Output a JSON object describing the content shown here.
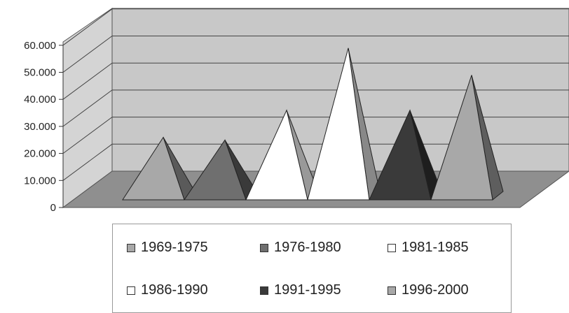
{
  "chart_data": {
    "type": "bar",
    "style": "3d-pyramid",
    "categories": [
      "1969-1975",
      "1976-1980",
      "1981-1985",
      "1986-1990",
      "1991-1995",
      "1996-2000"
    ],
    "values": [
      27000,
      26000,
      37000,
      60000,
      37000,
      50000
    ],
    "yticks": [
      "0",
      "10.000",
      "20.000",
      "30.000",
      "40.000",
      "50.000",
      "60.000"
    ],
    "ylim": [
      0,
      60000
    ],
    "grid": true,
    "legend_position": "bottom",
    "colors": {
      "front": [
        "#a8a8a8",
        "#6f6f6f",
        "#ffffff",
        "#ffffff",
        "#3a3a3a",
        "#a8a8a8"
      ],
      "side": [
        "#5a5a5a",
        "#3a3a3a",
        "#999999",
        "#888888",
        "#1e1e1e",
        "#5e5e5e"
      ],
      "wall": "#c8c8c8",
      "floor": "#8f8f8f"
    }
  }
}
